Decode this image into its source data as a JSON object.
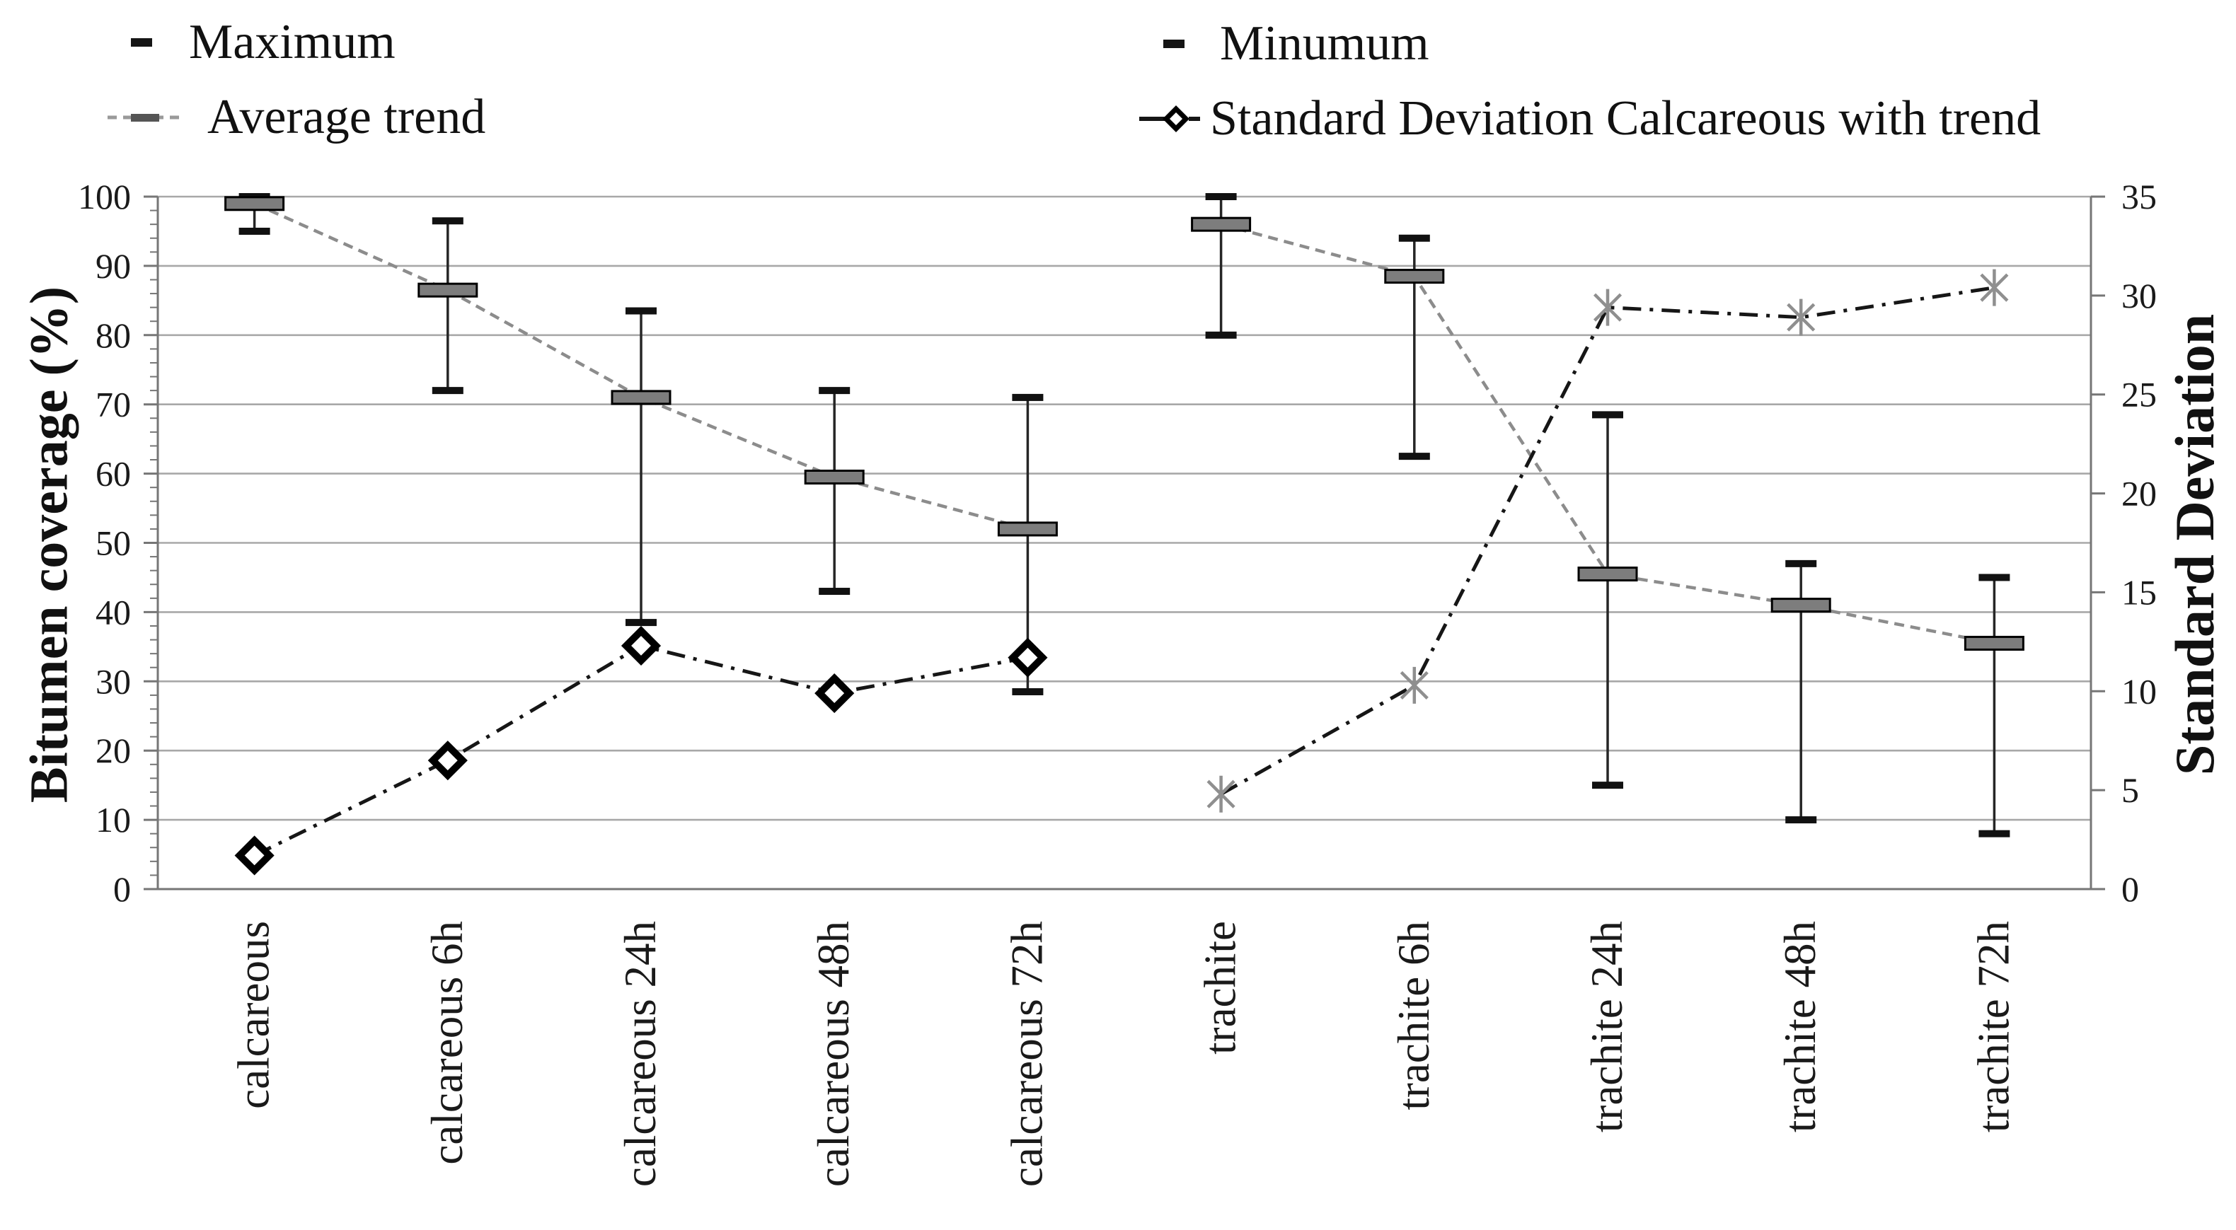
{
  "legend": {
    "maximum_label": "Maximum",
    "minimum_label": "Minumum",
    "average_label": "Average trend",
    "std_calcareous_label": "Standard Deviation Calcareous with trend"
  },
  "axes": {
    "left_title": "Bitumen coverage (%)",
    "right_title": "Standard Deviation",
    "left_tick_labels": [
      "0",
      "10",
      "20",
      "30",
      "40",
      "50",
      "60",
      "70",
      "80",
      "90",
      "100"
    ],
    "right_tick_labels": [
      "0",
      "5",
      "10",
      "15",
      "20",
      "25",
      "30",
      "35"
    ]
  },
  "colors": {
    "grid": "#a8a8a8",
    "axis": "#767676",
    "box_fill": "#7d7d7d",
    "box_border": "#000000",
    "whisker": "#262626",
    "cap": "#111111",
    "avg_line": "#8c8c8c",
    "std_line": "#161616",
    "asterisk": "#8f8f8f",
    "text": "#1a1a1a"
  },
  "chart_data": {
    "type": "bar",
    "subtype": "floating average boxes with min/max whiskers and two trend lines (dual axis)",
    "categories": [
      "calcareous",
      "calcareous 6h",
      "calcareous 24h",
      "calcareous 48h",
      "calcareous 72h",
      "trachite",
      "trachite 6h",
      "trachite 24h",
      "trachite 48h",
      "trachite 72h"
    ],
    "groups": [
      {
        "name": "calcareous",
        "indices": [
          0,
          1,
          2,
          3,
          4
        ]
      },
      {
        "name": "trachite",
        "indices": [
          5,
          6,
          7,
          8,
          9
        ]
      }
    ],
    "left_axis": {
      "label": "Bitumen coverage (%)",
      "min": 0,
      "max": 100,
      "tick_step": 10,
      "minor_tick_step": 2
    },
    "right_axis": {
      "label": "Standard Deviation",
      "min": 0,
      "max": 35,
      "tick_step": 5
    },
    "grid": "horizontal major gridlines every 10 (left axis)",
    "legend_position": "two rows above plot",
    "series": [
      {
        "name": "Average (gray box, left axis)",
        "values": [
          99,
          86.5,
          71,
          59.5,
          52,
          96,
          88.5,
          45.5,
          41,
          35.5
        ]
      },
      {
        "name": "Maximum (whisker top, left axis)",
        "values": [
          100,
          96.5,
          83.5,
          72,
          71,
          100,
          94,
          68.5,
          47,
          45
        ]
      },
      {
        "name": "Minumum (whisker bottom, left axis)",
        "values": [
          95,
          72,
          38.5,
          43,
          28.5,
          80,
          62.5,
          15,
          10,
          8
        ]
      },
      {
        "name": "Average trend (gray dashed line through boxes, per group)",
        "values": [
          99,
          86.5,
          71,
          59.5,
          52,
          96,
          88.5,
          45.5,
          41,
          35.5
        ]
      },
      {
        "name": "Standard Deviation Calcareous with trend (right axis, hollow diamond, dash-dot line)",
        "values": [
          1.7,
          6.5,
          12.3,
          9.9,
          11.7,
          null,
          null,
          null,
          null,
          null
        ]
      },
      {
        "name": "Standard Deviation Trachite (right axis, gray asterisk, dash-dot line, no legend entry)",
        "values": [
          null,
          null,
          null,
          null,
          null,
          4.8,
          10.3,
          29.4,
          28.9,
          30.4
        ]
      }
    ]
  }
}
